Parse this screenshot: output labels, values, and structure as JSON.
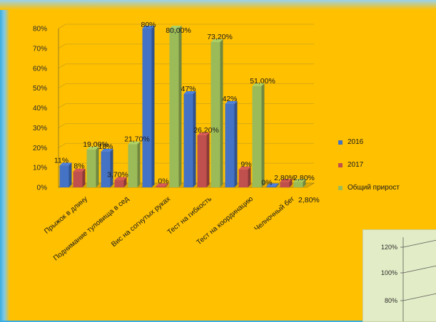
{
  "chart_data": [
    {
      "type": "bar",
      "categories": [
        "Прыжок в длину",
        "Поднимание туловища в сед",
        "Вис на согнутых руках",
        "Тест на гибкость",
        "Тест на координацию",
        "Челночный бег"
      ],
      "series": [
        {
          "name": "2016",
          "color": "#4472c4",
          "values": [
            11,
            18,
            80,
            47,
            42,
            0
          ],
          "labels": [
            "11%",
            "18%",
            "80%",
            "47%",
            "42%",
            "0%"
          ]
        },
        {
          "name": "2017",
          "color": "#c0504d",
          "values": [
            8,
            3.7,
            0,
            26.2,
            9,
            2.8
          ],
          "labels": [
            "8%",
            "3,70%",
            "0%",
            "26,20%",
            "9%",
            "2,80%"
          ]
        },
        {
          "name": "Общий прирост",
          "color": "#9bbb59",
          "values": [
            19,
            21.7,
            80,
            73.2,
            51,
            2.8
          ],
          "labels": [
            "19,00%",
            "21,70%",
            "80,00%",
            "73,20%",
            "51,00%",
            "2,80%"
          ]
        }
      ],
      "ylim": [
        0,
        80
      ],
      "yticks": [
        "0%",
        "10%",
        "20%",
        "30%",
        "40%",
        "50%",
        "60%",
        "70%",
        "80%"
      ],
      "legend": "right",
      "grid": true
    },
    {
      "type": "bar",
      "yticks": [
        "120%",
        "100%",
        "80%"
      ],
      "note": "partially visible inset chart"
    }
  ]
}
